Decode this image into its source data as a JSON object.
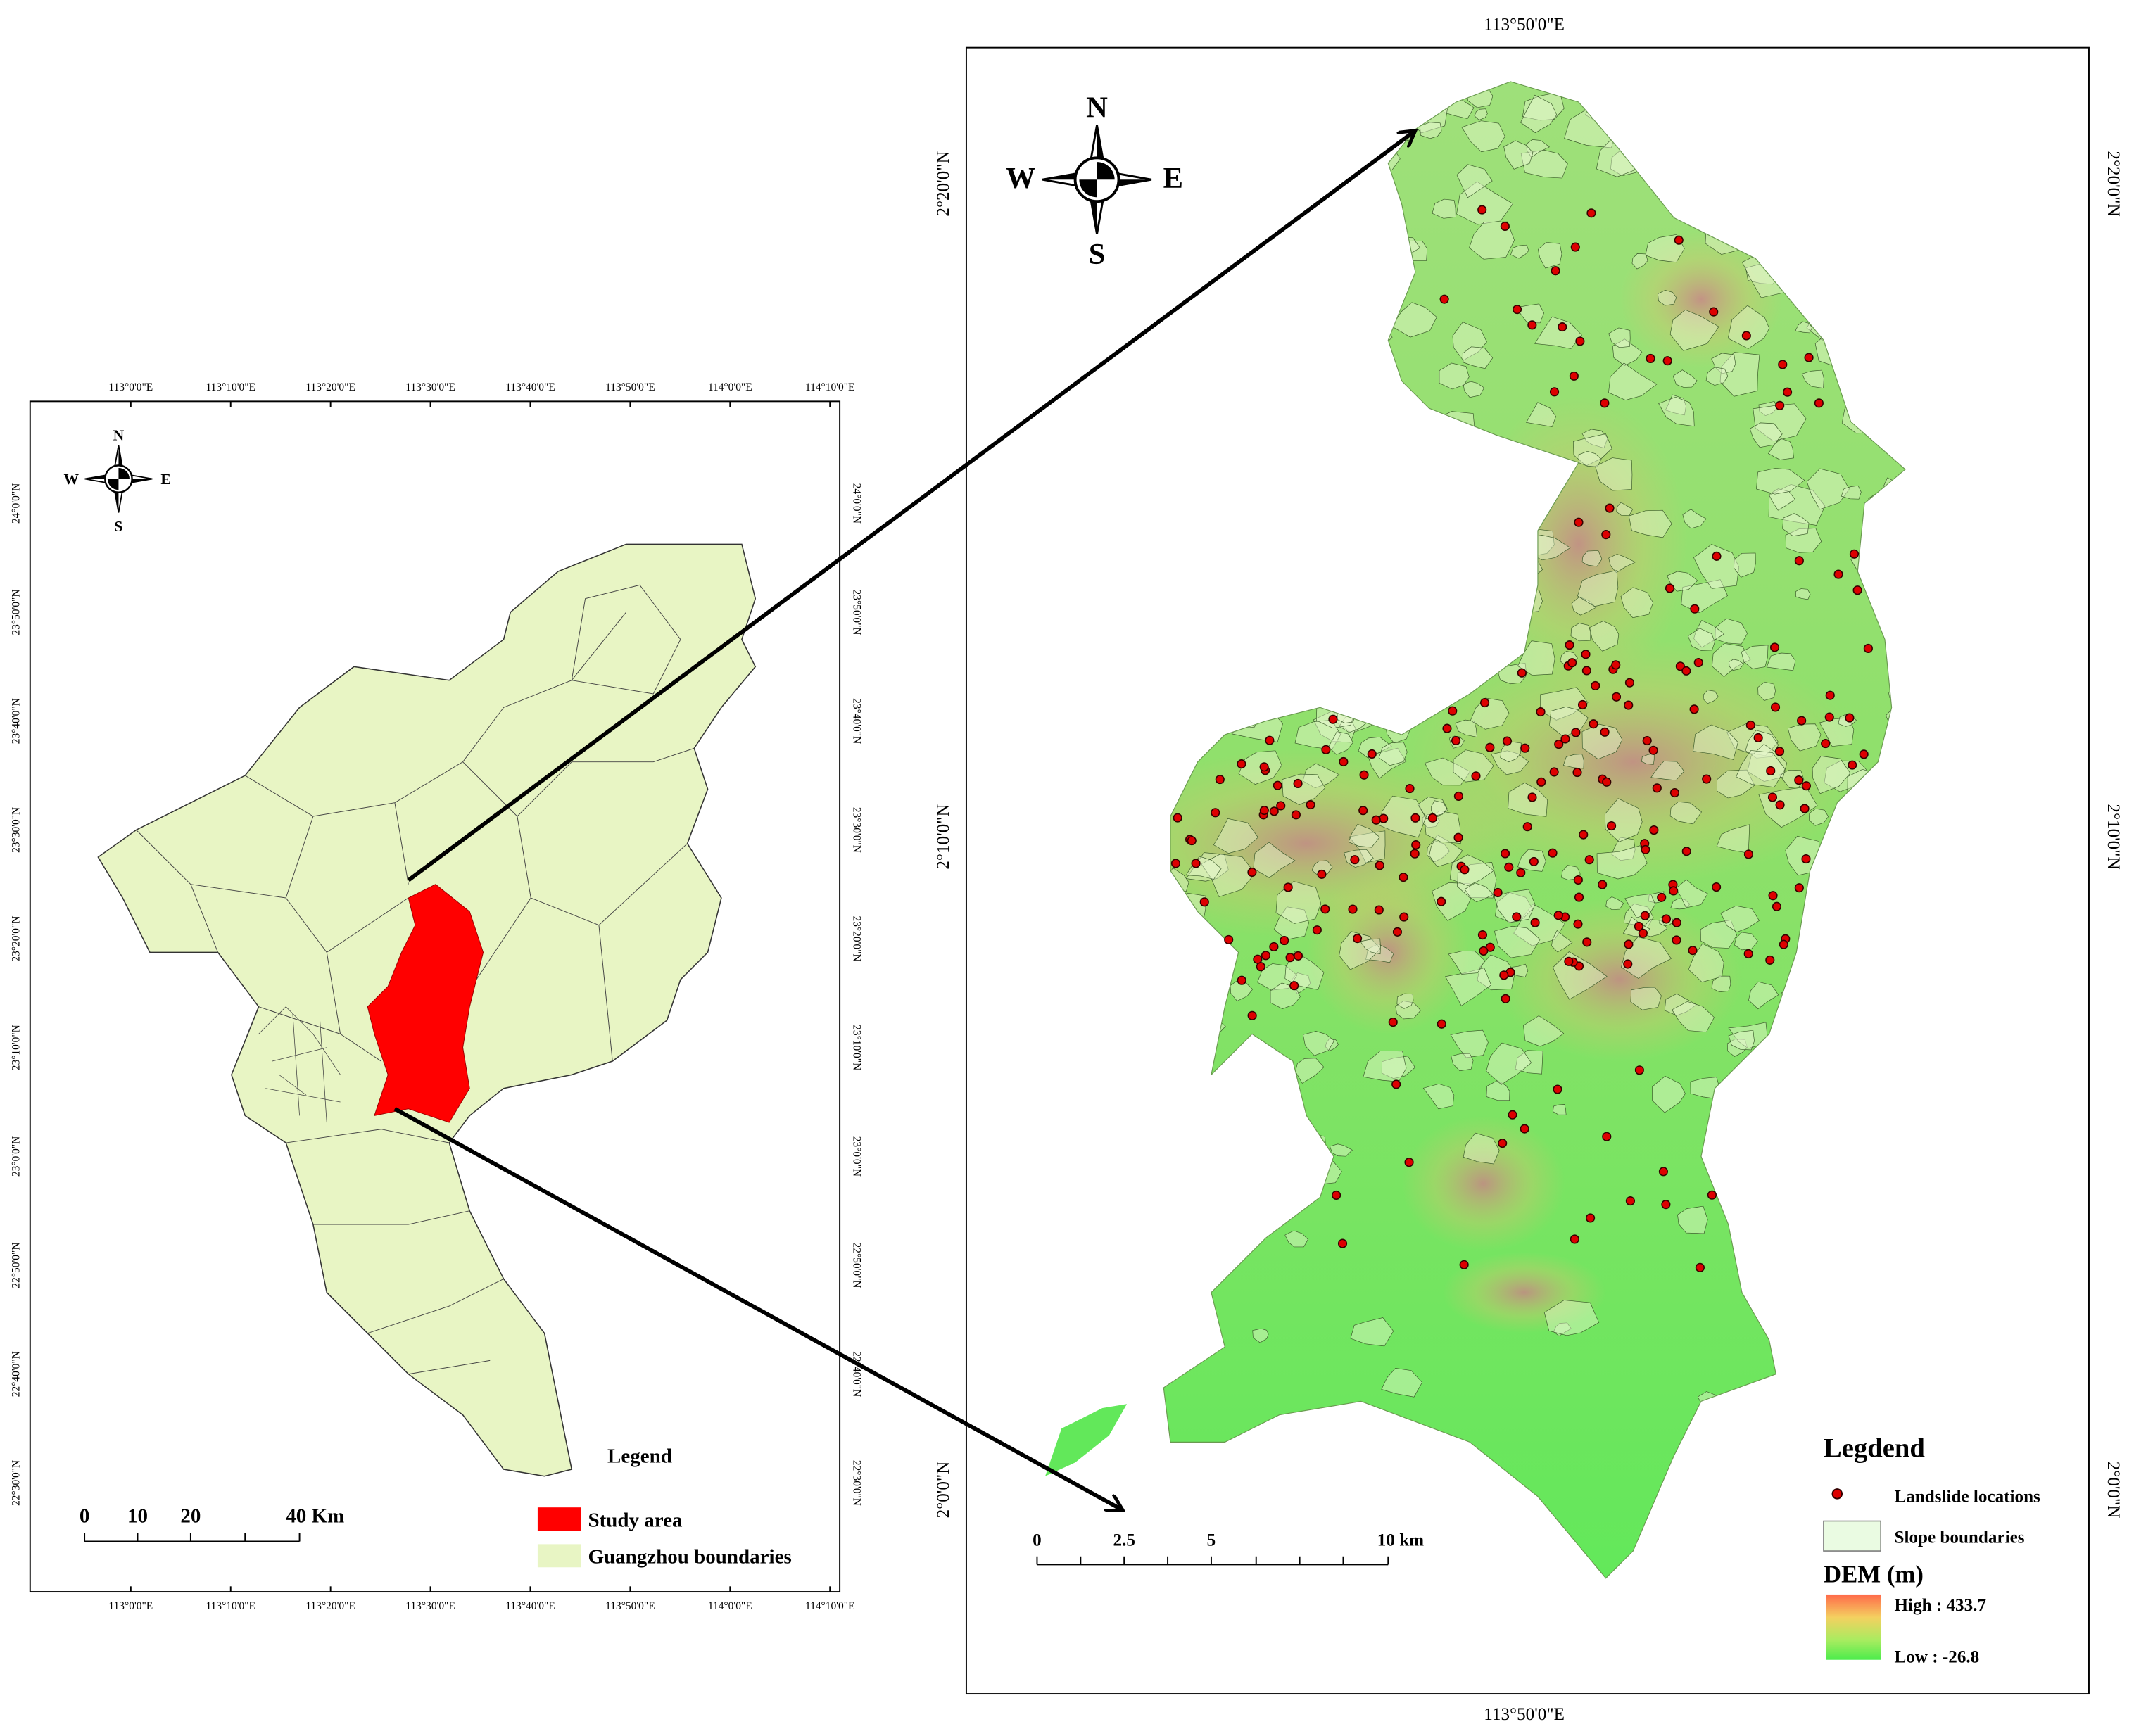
{
  "left_map": {
    "lon_labels": [
      "113°0'0\"E",
      "113°10'0\"E",
      "113°20'0\"E",
      "113°30'0\"E",
      "113°40'0\"E",
      "113°50'0\"E",
      "114°0'0\"E",
      "114°10'0\"E"
    ],
    "lat_labels": [
      "24°0'0\"N",
      "23°50'0\"N",
      "23°40'0\"N",
      "23°30'0\"N",
      "23°20'0\"N",
      "23°10'0\"N",
      "23°0'0\"N",
      "22°50'0\"N",
      "22°40'0\"N",
      "22°30'0\"N"
    ],
    "compass": {
      "n": "N",
      "s": "S",
      "e": "E",
      "w": "W"
    },
    "legend": {
      "title": "Legend",
      "items": [
        "Study area",
        "Guangzhou boundaries"
      ]
    },
    "scale": [
      "0",
      "10",
      "20",
      "40 Km"
    ]
  },
  "right_map": {
    "lon_label": "113°50'0\"E",
    "lat_labels": [
      "2°20'0\"N",
      "2°10'0\"N",
      "2°0'0\"N"
    ],
    "compass": {
      "n": "N",
      "s": "S",
      "e": "E",
      "w": "W"
    },
    "legend": {
      "title": "Legdend",
      "landslides": "Landslide locations",
      "slopes": "Slope boundaries",
      "dem_title": "DEM (m)",
      "high": "High : 433.7",
      "low": "Low : -26.8"
    },
    "scale": [
      "0",
      "2.5",
      "5",
      "10 km"
    ]
  }
}
